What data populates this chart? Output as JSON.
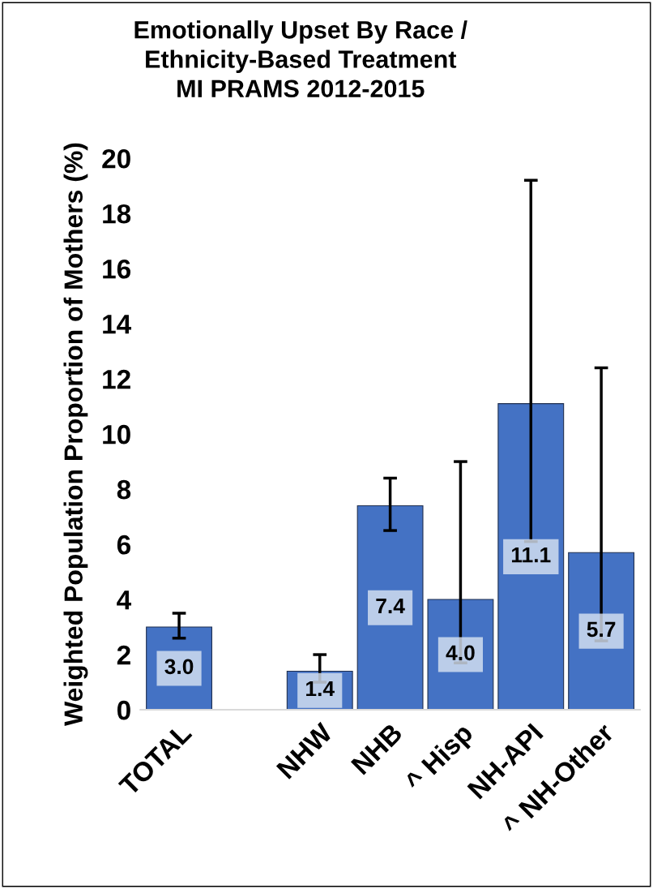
{
  "chart_data": {
    "type": "bar",
    "title": "Emotionally Upset By Race /\nEthnicity-Based Treatment\nMI PRAMS 2012-2015",
    "ylabel": "Weighted Population Proportion of Mothers (%)",
    "categories": [
      "TOTAL",
      null,
      "NHW",
      "NHB",
      "^ Hisp",
      "NH-API",
      "^ NH-Other"
    ],
    "values": [
      3.0,
      null,
      1.4,
      7.4,
      4.0,
      11.1,
      5.7
    ],
    "value_labels": [
      "3.0",
      null,
      "1.4",
      "7.4",
      "4.0",
      "11.1",
      "5.7"
    ],
    "errors": [
      [
        2.6,
        3.5
      ],
      null,
      [
        1.0,
        2.0
      ],
      [
        6.5,
        8.4
      ],
      [
        1.7,
        9.0
      ],
      [
        6.1,
        19.2
      ],
      [
        2.5,
        12.4
      ]
    ],
    "color": "#4472c4",
    "ylim": [
      0,
      20
    ],
    "yticks": [
      0,
      2,
      4,
      6,
      8,
      10,
      12,
      14,
      16,
      18,
      20
    ],
    "grid": false,
    "legend": false
  }
}
